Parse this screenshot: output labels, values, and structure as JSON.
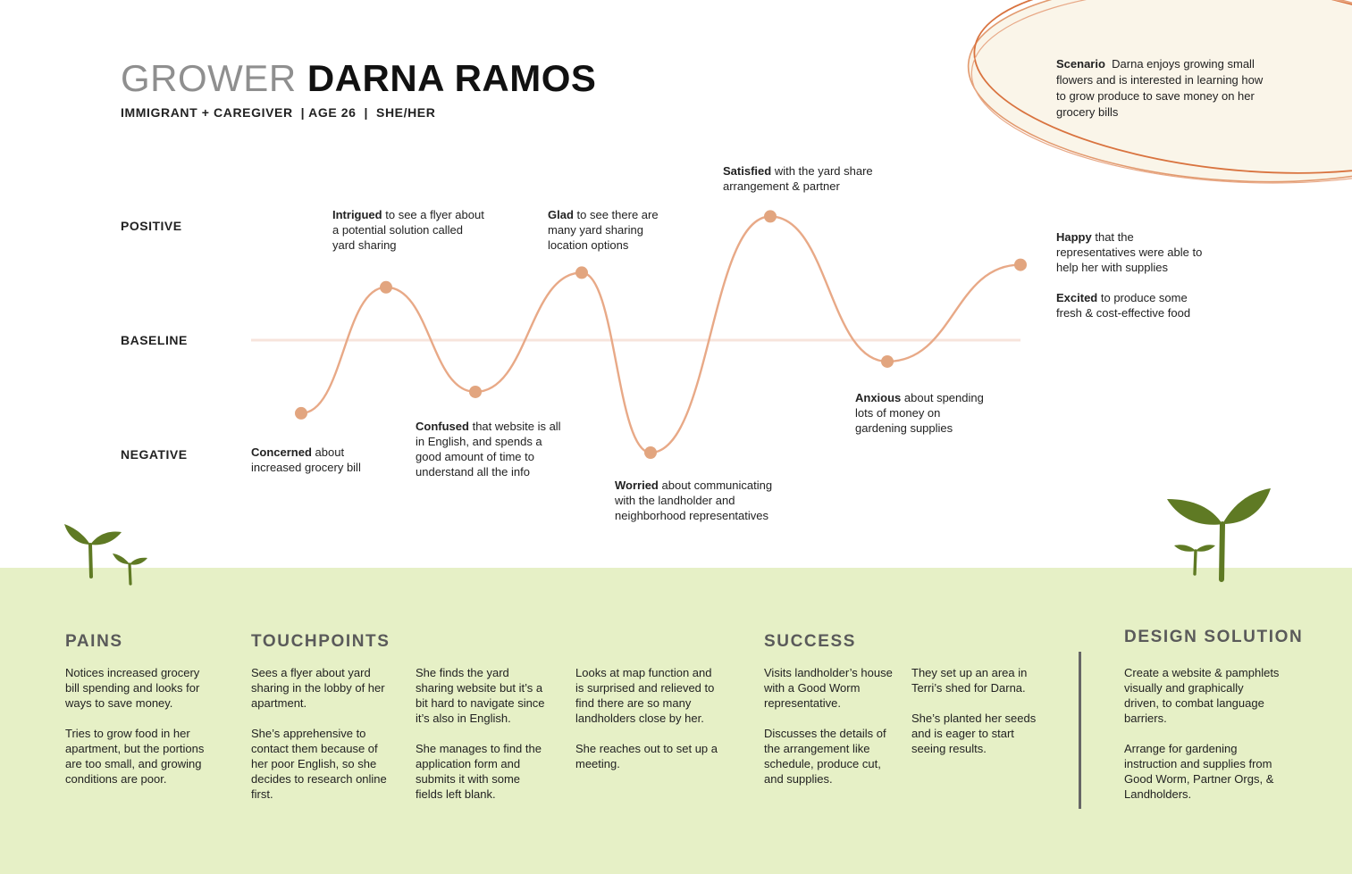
{
  "header": {
    "role": "GROWER",
    "name": "DARNA RAMOS",
    "subtitle": "IMMIGRANT + CAREGIVER  | AGE 26  |  SHE/HER"
  },
  "scenario": {
    "label": "Scenario",
    "text": "Darna enjoys growing small flowers and is interested in learning how to grow produce to save money on her grocery bills"
  },
  "axis": {
    "positive": "POSITIVE",
    "baseline": "BASELINE",
    "negative": "NEGATIVE"
  },
  "journey": {
    "points": [
      {
        "emotion": "Concerned",
        "text": "about increased grocery bill",
        "sentiment": -0.65
      },
      {
        "emotion": "Intrigued",
        "text": "to see a flyer about a potential solution called yard sharing",
        "sentiment": 0.47
      },
      {
        "emotion": "Confused",
        "text": "that website is all in English, and spends a good amount of time to understand all the info",
        "sentiment": -0.46
      },
      {
        "emotion": "Glad",
        "text": "to see there are many yard sharing location options",
        "sentiment": 0.6
      },
      {
        "emotion": "Worried",
        "text": "about communicating with the  landholder and neighborhood representatives",
        "sentiment": -1.0
      },
      {
        "emotion": "Satisfied",
        "text": "with the yard share arrangement & partner",
        "sentiment": 1.1
      },
      {
        "emotion": "Anxious",
        "text": "about spending lots of money on gardening supplies",
        "sentiment": -0.19
      },
      {
        "emotion": "Happy",
        "text": "that the representatives were able to help her with supplies",
        "sentiment": 0.67
      }
    ],
    "extra": {
      "emotion": "Excited",
      "text": "to produce some fresh & cost-effective food"
    }
  },
  "pains": {
    "heading": "PAINS",
    "paragraphs": [
      "Notices increased grocery bill spending and looks for ways to save money.",
      "Tries to grow food in her apartment, but the portions are too small, and growing conditions are poor."
    ]
  },
  "touchpoints": {
    "heading": "TOUCHPOINTS",
    "columns": [
      [
        "Sees a flyer about yard sharing in the lobby of her apartment.",
        "She’s apprehensive to contact them because of her poor English, so she decides to research online first."
      ],
      [
        "She finds the yard sharing website but it’s a bit hard to navigate since it’s also in English.",
        "She manages to find the application form and submits it with some fields left blank."
      ],
      [
        "Looks at map function and is surprised and relieved to find there are so many landholders close by her.",
        "She reaches out to set up a meeting."
      ]
    ]
  },
  "success": {
    "heading": "SUCCESS",
    "columns": [
      [
        "Visits landholder’s house with a Good Worm representative.",
        "Discusses the details of the arrangement like schedule, produce cut, and supplies."
      ],
      [
        "They set up an area in Terri’s shed for Darna.",
        "She’s planted her seeds and is eager to start seeing results."
      ]
    ]
  },
  "design_solution": {
    "heading": "DESIGN SOLUTION",
    "paragraphs": [
      "Create a website & pamphlets visually and graphically driven, to combat language barriers.",
      "Arrange for gardening instruction and supplies from Good Worm, Partner Orgs, & Landholders."
    ]
  },
  "colors": {
    "curve": "#e8a987",
    "dot": "#e2a57f",
    "baseline": "#f7e4dc",
    "ground": "#e6f0c6",
    "sprout": "#5f7a24",
    "blob_fill": "#faf5e9",
    "blob_stroke": "#d9733f"
  }
}
